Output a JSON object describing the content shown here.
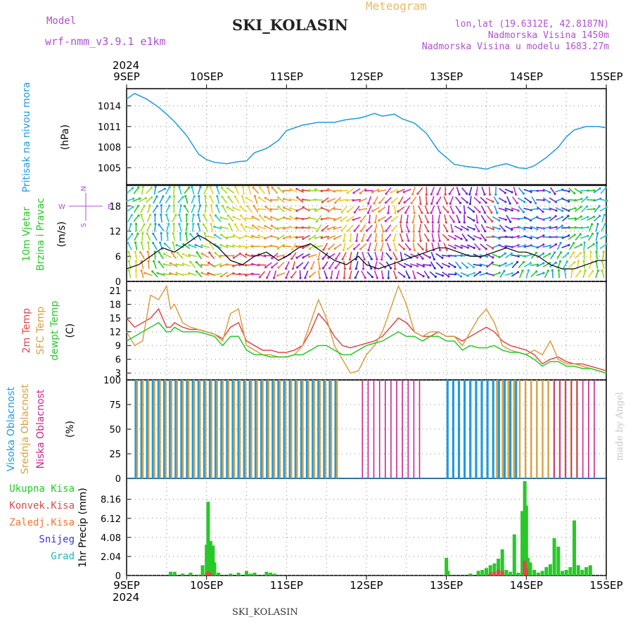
{
  "header": {
    "model_label": "Model",
    "model_value": "wrf-nmm_v3.9.1 e1km",
    "station": "SKI_KOLASIN",
    "product": "Meteogram",
    "lonlat": "lon,lat (19.6312E, 42.8187N)",
    "altitude": "Nadmorska Visina 1450m",
    "model_altitude": "Nadmorska Visina u modelu 1683.27m",
    "year": "2024",
    "footer_station": "SKI_KOLASIN",
    "credit": "made by Angel"
  },
  "colors": {
    "pressure": "#1e9be0",
    "temp2m": "#e04848",
    "sfc": "#d8a040",
    "dewpt": "#28c828",
    "high_cloud": "#1e9be0",
    "mid_cloud": "#d8a040",
    "low_cloud": "#c8288c",
    "total_precip": "#28c828",
    "conv_precip": "#e04848",
    "snow_label": "#3838d8",
    "freezing_label": "#f07830",
    "grad_label": "#20b8b8"
  },
  "chart_data": [
    {
      "type": "line",
      "panel": "pressure",
      "labels": [
        "Pritisak na nivou mora",
        "(hPa)"
      ],
      "x_ticks": [
        "9SEP",
        "10SEP",
        "11SEP",
        "12SEP",
        "13SEP",
        "14SEP",
        "15SEP"
      ],
      "y_ticks": [
        1005,
        1008,
        1011,
        1014
      ],
      "ylim": [
        1002.5,
        1016.5
      ],
      "series": [
        {
          "x": [
            0,
            0.1,
            0.25,
            0.4,
            0.5,
            0.6,
            0.75,
            0.9,
            1.0,
            1.1,
            1.25,
            1.4,
            1.5,
            1.6,
            1.75,
            1.9,
            2.0,
            2.2,
            2.4,
            2.6,
            2.75,
            2.9,
            3.0,
            3.1,
            3.2,
            3.35,
            3.45,
            3.6,
            3.75,
            3.9,
            4.0,
            4.1,
            4.25,
            4.4,
            4.5,
            4.6,
            4.75,
            4.9,
            5.0,
            5.1,
            5.25,
            5.4,
            5.5,
            5.6,
            5.75,
            5.9,
            6.0
          ],
          "y": [
            1015,
            1015.8,
            1015,
            1013.8,
            1012.8,
            1011.7,
            1009.7,
            1007,
            1006.2,
            1005.8,
            1005.6,
            1005.9,
            1006,
            1007.2,
            1007.8,
            1009,
            1010.4,
            1011.2,
            1011.6,
            1011.6,
            1012,
            1012.2,
            1012.5,
            1012.9,
            1012.5,
            1012.8,
            1012.1,
            1011.5,
            1010,
            1007.5,
            1006.5,
            1005.5,
            1005.2,
            1005,
            1004.8,
            1005.2,
            1005.6,
            1005,
            1004.9,
            1005.3,
            1006.5,
            1008,
            1009.5,
            1010.5,
            1011,
            1011,
            1010.8
          ]
        }
      ]
    },
    {
      "type": "line",
      "panel": "wind",
      "labels": [
        "10m Vjetar",
        "Brzina i Pravac",
        "(m/s)"
      ],
      "compass": [
        "N",
        "E",
        "W",
        "S"
      ],
      "y_ticks": [
        0,
        6,
        12,
        18
      ],
      "ylim": [
        0,
        23
      ],
      "series": [
        {
          "name": "10m Vjetar",
          "x": [
            0,
            0.15,
            0.3,
            0.45,
            0.6,
            0.75,
            0.9,
            1.0,
            1.15,
            1.3,
            1.45,
            1.6,
            1.75,
            1.9,
            2.0,
            2.15,
            2.3,
            2.45,
            2.6,
            2.75,
            2.9,
            3.0,
            3.15,
            3.3,
            3.45,
            3.6,
            3.75,
            3.9,
            4.0,
            4.15,
            4.3,
            4.45,
            4.6,
            4.75,
            4.9,
            5.0,
            5.15,
            5.3,
            5.45,
            5.6,
            5.75,
            5.9,
            6.0
          ],
          "y": [
            3,
            4,
            6,
            8,
            7,
            9,
            11,
            10,
            8,
            5,
            4,
            6,
            7,
            5,
            6,
            8,
            9,
            7,
            5,
            4,
            6,
            4,
            3,
            4,
            5,
            6,
            7,
            8,
            8,
            7,
            6,
            6,
            7,
            8,
            7,
            7,
            6,
            4,
            3,
            3,
            4,
            5,
            5
          ]
        }
      ]
    },
    {
      "type": "line",
      "panel": "temperature",
      "labels": [
        "2m Temp",
        "SFC Temp",
        "dewpt Temp",
        "(C)"
      ],
      "y_ticks": [
        3,
        6,
        9,
        12,
        15,
        18,
        21
      ],
      "ylim": [
        1.5,
        23
      ],
      "x": [
        0,
        0.1,
        0.2,
        0.3,
        0.4,
        0.5,
        0.55,
        0.6,
        0.7,
        0.8,
        0.9,
        1.0,
        1.1,
        1.2,
        1.3,
        1.4,
        1.5,
        1.6,
        1.7,
        1.8,
        1.9,
        2.0,
        2.1,
        2.2,
        2.3,
        2.4,
        2.5,
        2.6,
        2.7,
        2.8,
        2.9,
        3.0,
        3.1,
        3.2,
        3.3,
        3.4,
        3.5,
        3.6,
        3.7,
        3.8,
        3.9,
        4.0,
        4.1,
        4.2,
        4.3,
        4.4,
        4.5,
        4.6,
        4.7,
        4.8,
        4.9,
        5.0,
        5.1,
        5.2,
        5.3,
        5.4,
        5.5,
        5.6,
        5.7,
        5.8,
        5.9,
        6.0
      ],
      "series": [
        {
          "name": "2m Temp",
          "y": [
            15,
            13,
            14,
            15,
            17,
            13,
            13,
            14,
            13,
            12.5,
            12.5,
            12,
            11.5,
            10.5,
            13,
            14,
            10,
            9,
            8,
            8,
            7.5,
            7.5,
            8,
            9,
            12,
            16,
            14,
            11,
            9,
            8.5,
            9,
            9.5,
            10,
            11,
            13,
            15,
            14,
            12,
            11,
            11,
            12,
            11,
            11,
            10,
            11,
            12,
            13,
            12,
            10,
            9,
            8.5,
            8,
            7,
            5,
            6,
            6.5,
            5.5,
            5,
            5,
            4.5,
            4,
            3.5
          ]
        },
        {
          "name": "SFC Temp",
          "y": [
            12,
            9,
            10,
            20,
            19,
            22,
            17,
            18,
            14,
            13,
            12.5,
            12,
            11.5,
            10,
            16,
            17,
            9,
            8,
            7,
            7,
            6.5,
            6.5,
            7,
            9,
            14,
            19,
            15,
            9,
            6,
            3,
            3.5,
            7,
            9,
            12,
            17,
            22,
            18,
            12,
            11,
            12,
            12,
            11,
            11,
            9,
            12,
            15,
            17,
            14,
            9,
            8,
            7.5,
            7,
            8,
            7,
            10,
            6,
            5,
            5,
            4.5,
            4,
            3.5,
            3
          ]
        },
        {
          "name": "dewpt Temp",
          "y": [
            10,
            11,
            12,
            13,
            14,
            12,
            12,
            13,
            12,
            12,
            12,
            11.5,
            11,
            9,
            11,
            11,
            8,
            7,
            7,
            6.5,
            6.5,
            6.5,
            7,
            7,
            8,
            9,
            9,
            8,
            7,
            7,
            8,
            9,
            9.5,
            10,
            11,
            12,
            11,
            11,
            10,
            11,
            11,
            10,
            10,
            8,
            9,
            8.5,
            8.5,
            9,
            8,
            7.5,
            7.5,
            7,
            6,
            4.5,
            5.5,
            5.5,
            4.5,
            4.5,
            4,
            4,
            3.5,
            3
          ]
        }
      ]
    },
    {
      "type": "bar",
      "panel": "clouds",
      "labels": [
        "Visoka Oblacnost",
        "Srednja Oblacnost",
        "Niska Oblacnost",
        "(%)"
      ],
      "y_ticks": [
        0,
        25,
        50,
        75,
        100
      ],
      "ylim": [
        0,
        100
      ],
      "ranges": [
        {
          "name": "Visoka Oblacnost",
          "x": [
            [
              0.1,
              1.6
            ],
            [
              1.6,
              2.7
            ],
            [
              4.0,
              4.9
            ]
          ],
          "value": 100
        },
        {
          "name": "Srednja Oblacnost",
          "x": [
            [
              0.1,
              2.7
            ],
            [
              4.6,
              5.7
            ]
          ],
          "value": 100
        },
        {
          "name": "Niska Oblacnost",
          "x": [
            [
              2.9,
              3.7
            ],
            [
              5.3,
              5.9
            ]
          ],
          "value": 100
        }
      ]
    },
    {
      "type": "bar",
      "panel": "precip",
      "labels": [
        "Ukupna Kisa",
        "Konvek.Kisa",
        "Zaledj.Kisa",
        "Snijeg",
        "Grad",
        "1hr Precip (mm)"
      ],
      "y_ticks": [
        0,
        2.04,
        4.08,
        6.12,
        8.16
      ],
      "ylim": [
        0,
        10.4
      ],
      "series": [
        {
          "name": "Ukupna Kisa",
          "x": [
            0.55,
            0.6,
            0.7,
            0.8,
            0.9,
            0.95,
            1.0,
            1.02,
            1.05,
            1.08,
            1.1,
            1.15,
            1.3,
            1.4,
            1.5,
            1.55,
            1.6,
            1.75,
            1.8,
            1.85,
            4.0,
            4.02,
            4.3,
            4.4,
            4.45,
            4.5,
            4.55,
            4.6,
            4.65,
            4.7,
            4.75,
            4.8,
            4.85,
            4.9,
            4.95,
            4.98,
            5.0,
            5.02,
            5.05,
            5.1,
            5.15,
            5.2,
            5.25,
            5.3,
            5.35,
            5.4,
            5.45,
            5.5,
            5.55,
            5.6,
            5.65,
            5.7,
            5.75,
            5.8
          ],
          "y": [
            0.4,
            0.4,
            0.2,
            0.3,
            0.1,
            1.1,
            3.3,
            7.9,
            3.7,
            3.2,
            1.4,
            0.3,
            0.2,
            0.3,
            0.5,
            0.2,
            0.3,
            0.4,
            0.3,
            0.2,
            1.9,
            0.5,
            0.2,
            0.5,
            0.6,
            0.8,
            1.1,
            1.3,
            1.8,
            2.8,
            0.6,
            0.4,
            4.4,
            0.3,
            6.9,
            10.1,
            7.5,
            1.9,
            1.4,
            0.6,
            0.3,
            0.5,
            0.9,
            1.2,
            4.0,
            3.1,
            0.5,
            0.6,
            0.9,
            5.9,
            1.1,
            0.6,
            0.9,
            1.1
          ]
        },
        {
          "name": "Konvek.Kisa",
          "x": [
            1.0,
            1.02,
            1.05,
            4.55,
            4.6,
            4.65,
            4.7,
            4.98,
            5.0
          ],
          "y": [
            0.2,
            0.4,
            0.3,
            0.3,
            0.4,
            0.6,
            0.5,
            1.6,
            0.8
          ]
        }
      ]
    }
  ]
}
